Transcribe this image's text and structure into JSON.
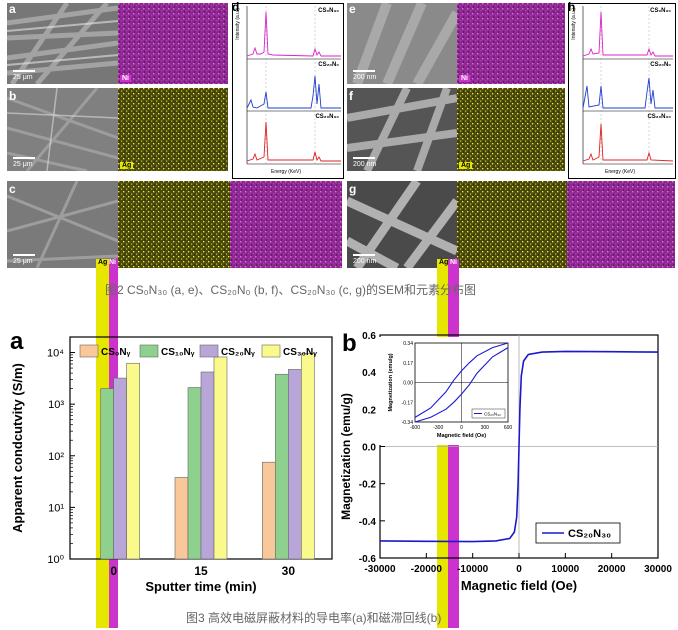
{
  "fig2": {
    "panel_letters": [
      "a",
      "b",
      "c",
      "d",
      "e",
      "f",
      "g",
      "h"
    ],
    "scale_bars": {
      "a": "25 μm",
      "b": "25 μm",
      "c": "25 μm",
      "e": "200 nm",
      "f": "200 nm",
      "g": "200 nm"
    },
    "element_tags": {
      "ni": "Ni",
      "ag": "Ag"
    },
    "colors": {
      "ni_map": "#cc33cc",
      "ag_map": "#e6e600"
    },
    "eds": {
      "d": {
        "spectra": [
          "CS₀N₃₀",
          "CS₂₀N₀",
          "CS₂₀N₃₀"
        ],
        "colors": [
          "#e020c8",
          "#1f3fd0",
          "#e02020"
        ],
        "y_title": "Intensity (a.u.)",
        "x_title": "Energy (KeV)",
        "x_ticks": [
          "0.0",
          "0.5",
          "1.0",
          "1.5",
          "2.0",
          "2.5",
          "3.0",
          "3.5",
          "4.0"
        ],
        "peaks": {
          "C": "C",
          "O": "O",
          "Ni": "Ni",
          "Ag": "Ag"
        }
      },
      "h": {
        "spectra": [
          "CS₀N₃₀",
          "CS₂₀N₀",
          "CS₂₀N₃₀"
        ],
        "colors": [
          "#e020c8",
          "#1f3fd0",
          "#e02020"
        ],
        "y_title": "Intensity (a.u.)",
        "x_title": "Energy (KeV)",
        "x_ticks": [
          "0.0",
          "0.5",
          "1.0",
          "1.5",
          "2.0",
          "2.5",
          "3.0",
          "3.5",
          "4.0"
        ]
      }
    },
    "caption": "图2 CS₀N₃₀ (a, e)、CS₂₀N₀ (b, f)、CS₂₀N₃₀ (c, g)的SEM和元素分布图"
  },
  "fig3": {
    "caption": "图3 高效电磁屏蔽材料的导电率(a)和磁滞回线(b)",
    "panel_a_letter": "a",
    "panel_b_letter": "b"
  },
  "chart_data": [
    {
      "type": "bar",
      "title": "",
      "xlabel": "Sputter time (min)",
      "ylabel": "Apparent condcutvity (S/m)",
      "yscale": "log",
      "ylim": [
        1,
        20000
      ],
      "y_ticks": [
        "10⁰",
        "10¹",
        "10²",
        "10³",
        "10⁴"
      ],
      "categories": [
        "0",
        "15",
        "30"
      ],
      "legend_position": "top",
      "series": [
        {
          "name": "CS₀Nᵧ",
          "color": "#f8c79a",
          "values": [
            null,
            38,
            75
          ]
        },
        {
          "name": "CS₁₀Nᵧ",
          "color": "#8ed18e",
          "values": [
            2000,
            2100,
            3800
          ]
        },
        {
          "name": "CS₂₀Nᵧ",
          "color": "#b8a6d9",
          "values": [
            3200,
            4200,
            4700
          ]
        },
        {
          "name": "CS₃₀Nᵧ",
          "color": "#fafa8c",
          "values": [
            6200,
            8200,
            9500
          ]
        }
      ]
    },
    {
      "type": "line",
      "title": "",
      "xlabel": "Magnetic field (Oe)",
      "ylabel": "Magnetization (emu/g)",
      "xlim": [
        -30000,
        30000
      ],
      "ylim": [
        -0.6,
        0.6
      ],
      "x_ticks": [
        "-30000",
        "-20000",
        "-10000",
        "0",
        "10000",
        "20000",
        "30000"
      ],
      "y_ticks": [
        "-0.6",
        "-0.4",
        "-0.2",
        "0.0",
        "0.2",
        "0.4",
        "0.6"
      ],
      "legend_position": "bottom-right",
      "series": [
        {
          "name": "CS₂₀N₃₀",
          "color": "#1a1acc",
          "x": [
            -30000,
            -20000,
            -10000,
            -5000,
            -2000,
            -1000,
            -500,
            -200,
            0,
            200,
            500,
            1000,
            2000,
            5000,
            10000,
            20000,
            30000
          ],
          "y": [
            -0.508,
            -0.51,
            -0.512,
            -0.508,
            -0.495,
            -0.46,
            -0.38,
            -0.2,
            0.0,
            0.2,
            0.38,
            0.46,
            0.495,
            0.508,
            0.512,
            0.51,
            0.508
          ]
        }
      ],
      "inset": {
        "xlabel": "Magnetic field (Oe)",
        "ylabel": "Magnetization (emu/g)",
        "xlim": [
          -600,
          600
        ],
        "ylim": [
          -0.34,
          0.34
        ],
        "x_ticks": [
          "-600",
          "-300",
          "0",
          "300",
          "600"
        ],
        "y_ticks": [
          "-0.34",
          "-0.17",
          "0.00",
          "0.17",
          "0.34"
        ],
        "legend": "CS₂₀N₃₀",
        "upper_branch": {
          "x": [
            -600,
            -400,
            -200,
            -100,
            0,
            100,
            200,
            400,
            600
          ],
          "y": [
            -0.3,
            -0.22,
            -0.08,
            0.02,
            0.1,
            0.17,
            0.23,
            0.3,
            0.34
          ]
        },
        "lower_branch": {
          "x": [
            -600,
            -400,
            -200,
            -100,
            0,
            100,
            200,
            400,
            600
          ],
          "y": [
            -0.34,
            -0.3,
            -0.23,
            -0.17,
            -0.1,
            -0.02,
            0.08,
            0.22,
            0.3
          ]
        }
      }
    }
  ]
}
